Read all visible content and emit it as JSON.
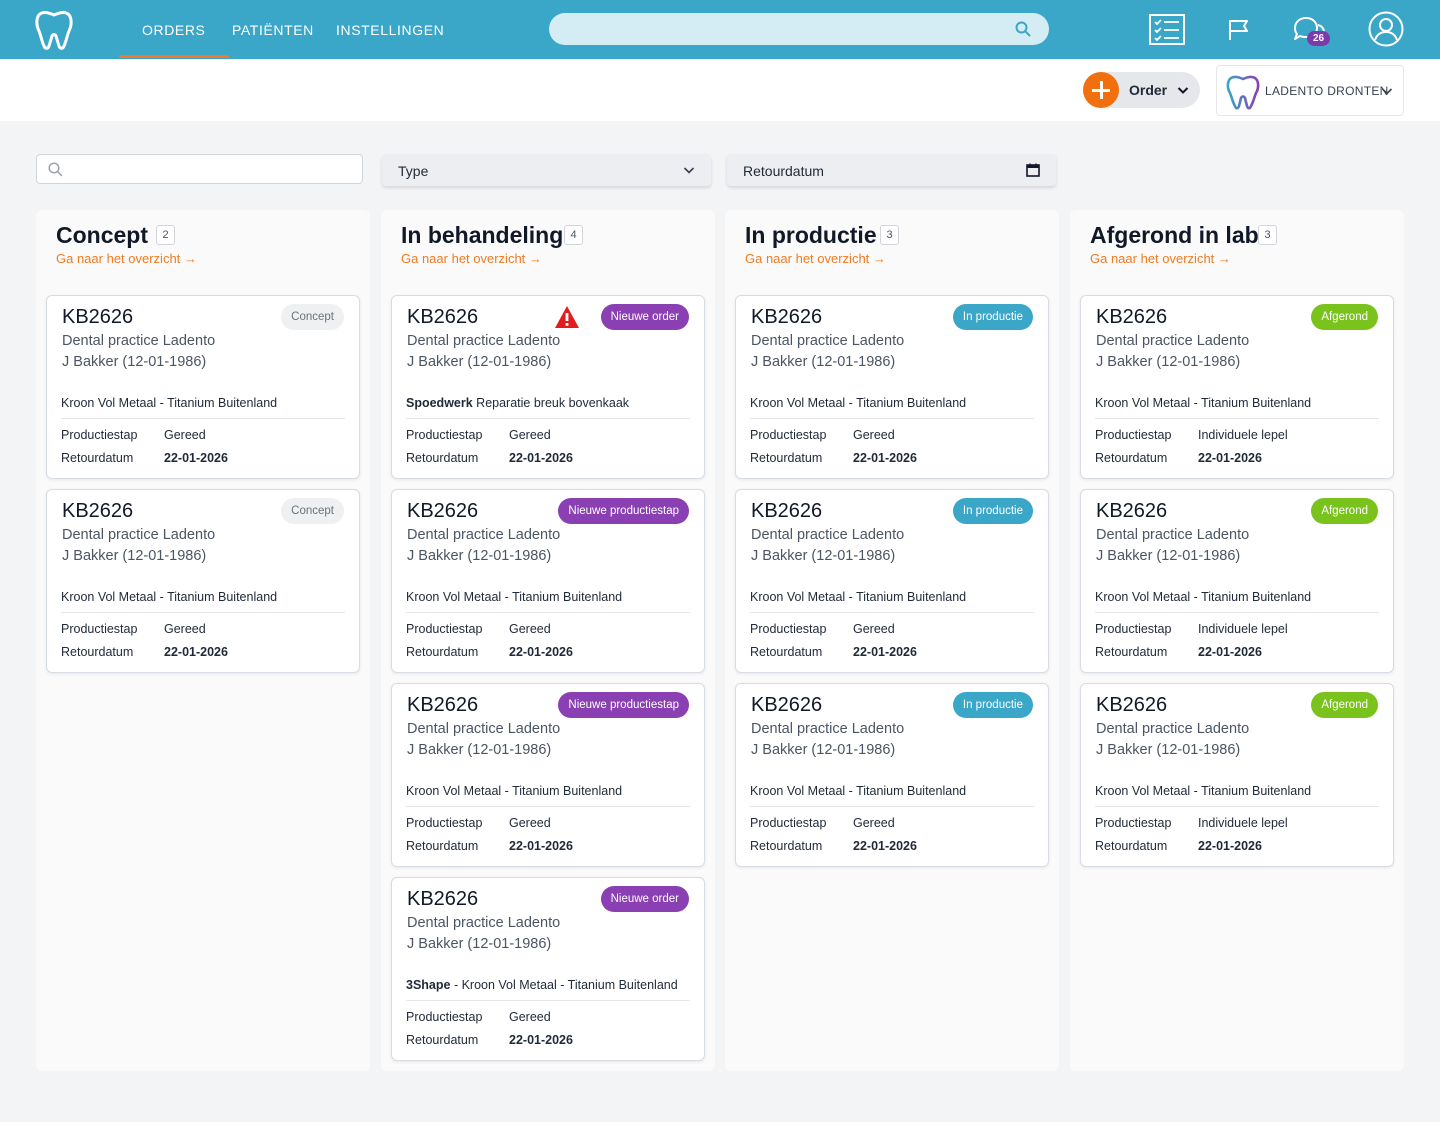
{
  "nav": {
    "links": [
      "ORDERS",
      "PATIËNTEN",
      "INSTELLINGEN"
    ],
    "search_placeholder": "",
    "icons": [
      "tooth-logo-icon",
      "checklist-icon",
      "flag-icon",
      "chat-icon",
      "user-icon"
    ],
    "chat_badge": "26"
  },
  "subbar": {
    "order_label": "Order",
    "practice_name": "LADENTO DRONTEN"
  },
  "filters": {
    "search_placeholder": "",
    "type_label": "Type",
    "date_label": "Retourdatum"
  },
  "colors": {
    "primary": "#3aa6c8",
    "accent": "#f07b22",
    "purple": "#8a3fb3",
    "green": "#7ac31d"
  },
  "columns": [
    {
      "title": "Concept",
      "count": "2",
      "link": "Ga naar het overzicht →",
      "cards": [
        {
          "code": "KB2626",
          "practice": "Dental practice Ladento",
          "patient": "J Bakker (12-01-1986)",
          "product_prefix": "",
          "product": "Kroon Vol Metaal - Titanium Buitenland",
          "k1": "Productiestap",
          "v1": "Gereed",
          "k2": "Retourdatum",
          "v2": "22-01-2026",
          "status": "Concept",
          "status_type": "concept",
          "warning": false
        },
        {
          "code": "KB2626",
          "practice": "Dental practice Ladento",
          "patient": "J Bakker (12-01-1986)",
          "product_prefix": "",
          "product": "Kroon Vol Metaal - Titanium Buitenland",
          "k1": "Productiestap",
          "v1": "Gereed",
          "k2": "Retourdatum",
          "v2": "22-01-2026",
          "status": "Concept",
          "status_type": "concept",
          "warning": false
        }
      ]
    },
    {
      "title": "In behandeling",
      "count": "4",
      "link": "Ga naar het overzicht →",
      "cards": [
        {
          "code": "KB2626",
          "practice": "Dental practice Ladento",
          "patient": "J Bakker (12-01-1986)",
          "product_prefix": "Spoedwerk",
          "product": " Reparatie breuk bovenkaak",
          "k1": "Productiestap",
          "v1": "Gereed",
          "k2": "Retourdatum",
          "v2": "22-01-2026",
          "status": "Nieuwe order",
          "status_type": "purple",
          "warning": true
        },
        {
          "code": "KB2626",
          "practice": "Dental practice Ladento",
          "patient": "J Bakker (12-01-1986)",
          "product_prefix": "",
          "product": "Kroon Vol Metaal - Titanium Buitenland",
          "k1": "Productiestap",
          "v1": "Gereed",
          "k2": "Retourdatum",
          "v2": "22-01-2026",
          "status": "Nieuwe productiestap",
          "status_type": "purple",
          "warning": false
        },
        {
          "code": "KB2626",
          "practice": "Dental practice Ladento",
          "patient": "J Bakker (12-01-1986)",
          "product_prefix": "",
          "product": "Kroon Vol Metaal - Titanium Buitenland",
          "k1": "Productiestap",
          "v1": "Gereed",
          "k2": "Retourdatum",
          "v2": "22-01-2026",
          "status": "Nieuwe productiestap",
          "status_type": "purple",
          "warning": false
        },
        {
          "code": "KB2626",
          "practice": "Dental practice Ladento",
          "patient": "J Bakker (12-01-1986)",
          "product_prefix": "3Shape",
          "product": " - Kroon Vol Metaal - Titanium Buitenland",
          "k1": "Productiestap",
          "v1": "Gereed",
          "k2": "Retourdatum",
          "v2": "22-01-2026",
          "status": "Nieuwe order",
          "status_type": "purple",
          "warning": false
        }
      ]
    },
    {
      "title": "In productie",
      "count": "3",
      "link": "Ga naar het overzicht →",
      "cards": [
        {
          "code": "KB2626",
          "practice": "Dental practice Ladento",
          "patient": "J Bakker (12-01-1986)",
          "product_prefix": "",
          "product": "Kroon Vol Metaal - Titanium Buitenland",
          "k1": "Productiestap",
          "v1": "Gereed",
          "k2": "Retourdatum",
          "v2": "22-01-2026",
          "status": "In productie",
          "status_type": "blue",
          "warning": false
        },
        {
          "code": "KB2626",
          "practice": "Dental practice Ladento",
          "patient": "J Bakker (12-01-1986)",
          "product_prefix": "",
          "product": "Kroon Vol Metaal - Titanium Buitenland",
          "k1": "Productiestap",
          "v1": "Gereed",
          "k2": "Retourdatum",
          "v2": "22-01-2026",
          "status": "In productie",
          "status_type": "blue",
          "warning": false
        },
        {
          "code": "KB2626",
          "practice": "Dental practice Ladento",
          "patient": "J Bakker (12-01-1986)",
          "product_prefix": "",
          "product": "Kroon Vol Metaal - Titanium Buitenland",
          "k1": "Productiestap",
          "v1": "Gereed",
          "k2": "Retourdatum",
          "v2": "22-01-2026",
          "status": "In productie",
          "status_type": "blue",
          "warning": false
        }
      ]
    },
    {
      "title": "Afgerond in lab",
      "count": "3",
      "link": "Ga naar het overzicht →",
      "cards": [
        {
          "code": "KB2626",
          "practice": "Dental practice Ladento",
          "patient": "J Bakker (12-01-1986)",
          "product_prefix": "",
          "product": "Kroon Vol Metaal - Titanium Buitenland",
          "k1": "Productiestap",
          "v1": "Individuele lepel",
          "k2": "Retourdatum",
          "v2": "22-01-2026",
          "status": "Afgerond",
          "status_type": "green",
          "warning": false
        },
        {
          "code": "KB2626",
          "practice": "Dental practice Ladento",
          "patient": "J Bakker (12-01-1986)",
          "product_prefix": "",
          "product": "Kroon Vol Metaal - Titanium Buitenland",
          "k1": "Productiestap",
          "v1": "Individuele lepel",
          "k2": "Retourdatum",
          "v2": "22-01-2026",
          "status": "Afgerond",
          "status_type": "green",
          "warning": false
        },
        {
          "code": "KB2626",
          "practice": "Dental practice Ladento",
          "patient": "J Bakker (12-01-1986)",
          "product_prefix": "",
          "product": "Kroon Vol Metaal - Titanium Buitenland",
          "k1": "Productiestap",
          "v1": "Individuele lepel",
          "k2": "Retourdatum",
          "v2": "22-01-2026",
          "status": "Afgerond",
          "status_type": "green",
          "warning": false
        }
      ]
    }
  ]
}
